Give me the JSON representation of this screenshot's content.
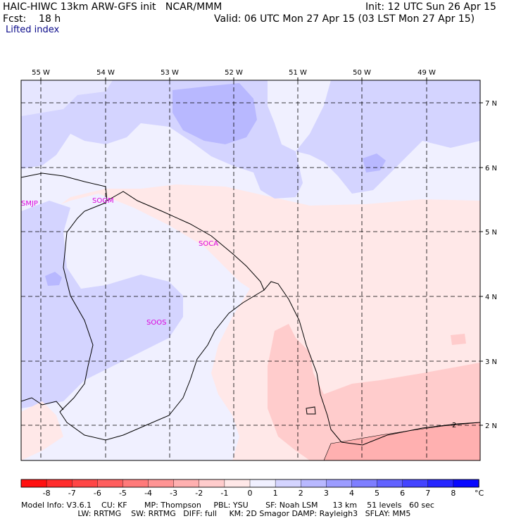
{
  "header": {
    "line1_left": "HAIC-HIWC 13km ARW-GFS init   NCAR/MMM",
    "line1_right": "Init: 12 UTC Sun 26 Apr 15",
    "line2_left": "Fcst:    18 h",
    "line2_right": "Valid: 06 UTC Mon 27 Apr 15 (03 LST Mon 27 Apr 15)",
    "field_name": "Lifted index"
  },
  "map": {
    "lon_labels": [
      "55 W",
      "54 W",
      "53 W",
      "52 W",
      "51 W",
      "50 W",
      "49 W"
    ],
    "lat_labels": [
      "7 N",
      "6 N",
      "5 N",
      "4 N",
      "3 N",
      "2 N"
    ],
    "stations": [
      {
        "id": "SMJP"
      },
      {
        "id": "SOGM"
      },
      {
        "id": "SOCA"
      },
      {
        "id": "SOOS"
      }
    ],
    "contour_label": "2"
  },
  "colorbar": {
    "labels": [
      "-8",
      "-7",
      "-6",
      "-5",
      "-4",
      "-3",
      "-2",
      "-1",
      "0",
      "1",
      "2",
      "3",
      "4",
      "5",
      "6",
      "7",
      "8"
    ],
    "unit": "°C",
    "colors": [
      "#ff1010",
      "#ff2c2c",
      "#ff4646",
      "#ff5e5e",
      "#ff7a7a",
      "#ff9494",
      "#ffb0b0",
      "#ffcccc",
      "#ffe8e8",
      "#f0f0ff",
      "#d4d4ff",
      "#b8b8ff",
      "#9c9cff",
      "#7e7eff",
      "#6262ff",
      "#4444ff",
      "#2626ff",
      "#0808ff"
    ]
  },
  "footer": {
    "line1": "Model Info: V3.6.1    CU: KF       MP: Thompson     PBL: YSU       SF: Noah LSM      13 km    51 levels   60 sec",
    "line2": "                       LW: RRTMG    SW: RRTMG   DIFF: full     KM: 2D Smagor DAMP: Rayleigh3   SFLAY: MM5"
  }
}
